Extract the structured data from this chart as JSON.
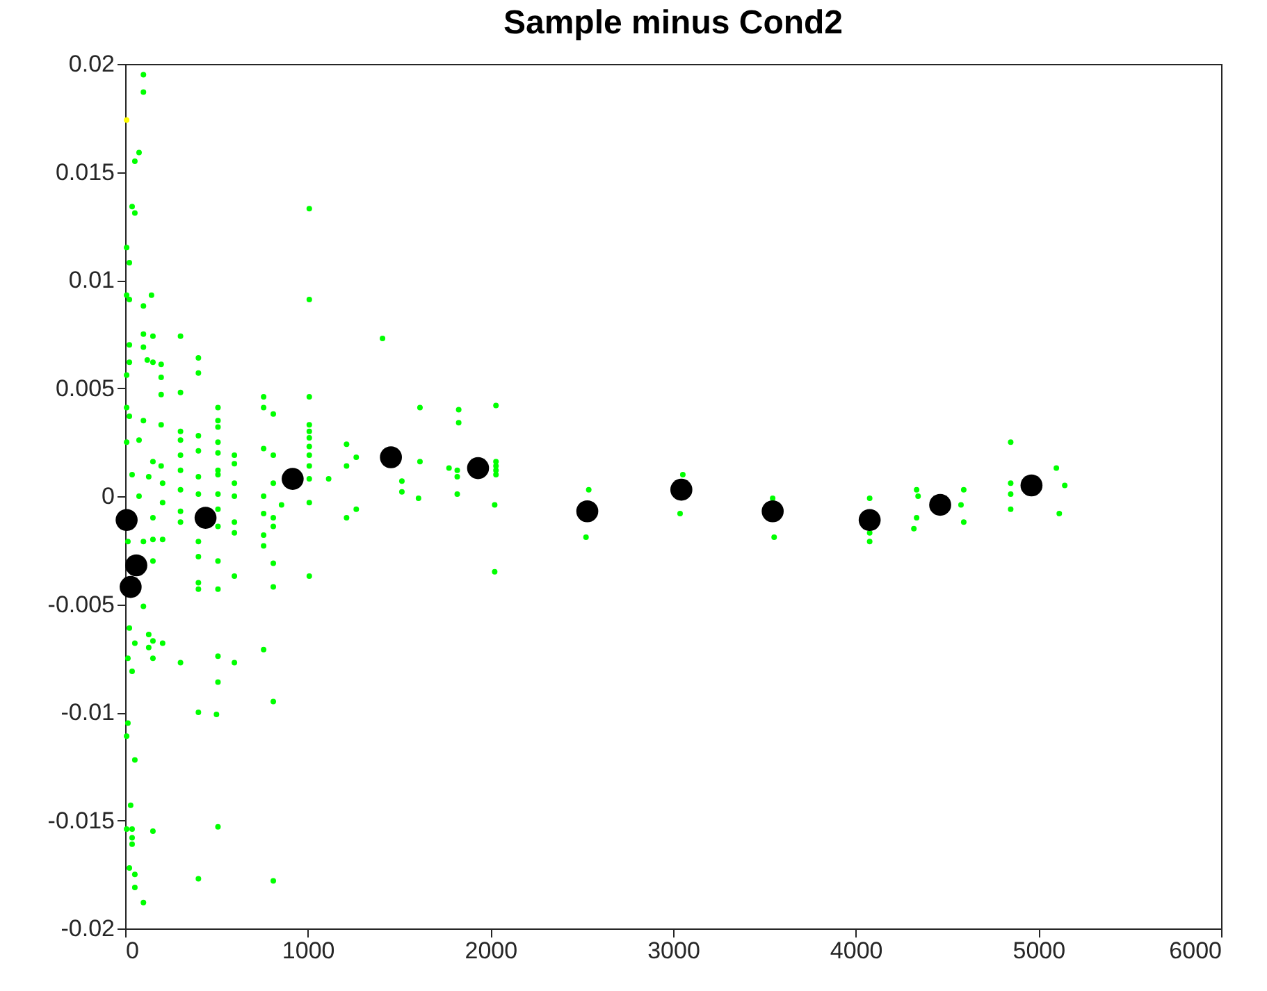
{
  "chart_data": {
    "type": "scatter",
    "title": "Sample minus Cond2",
    "xlim": [
      0,
      6000
    ],
    "xticks": [
      0,
      1000,
      2000,
      3000,
      4000,
      5000,
      6000
    ],
    "ylim": [
      -0.02,
      0.02
    ],
    "yticks": [
      -0.02,
      -0.015,
      -0.01,
      -0.005,
      0,
      0.005,
      0.01,
      0.015,
      0.02
    ],
    "grid": false,
    "marker": "circle",
    "series": [
      {
        "color": "#00ff00",
        "x": [
          100,
          100,
          76,
          53,
          38,
          53,
          1008,
          8,
          23,
          8,
          23,
          144,
          100,
          1008,
          100,
          152,
          303,
          1409,
          23,
          100,
          121,
          152,
          197,
          401,
          23,
          197,
          401,
          8,
          197,
          303,
          758,
          1008,
          758,
          811,
          508,
          8,
          23,
          100,
          508,
          197,
          508,
          303,
          303,
          401,
          1008,
          1008,
          1008,
          508,
          758,
          1212,
          1265,
          76,
          8,
          303,
          401,
          598,
          811,
          598,
          1008,
          1008,
          1008,
          152,
          197,
          303,
          508,
          508,
          1212,
          38,
          129,
          205,
          401,
          401,
          508,
          508,
          598,
          598,
          811,
          758,
          1008,
          1114,
          1008,
          856,
          303,
          303,
          303,
          205,
          152,
          76,
          508,
          508,
          598,
          598,
          758,
          811,
          811,
          758,
          758,
          1212,
          1265,
          401,
          401,
          508,
          811,
          598,
          1008,
          401,
          401,
          508,
          811,
          205,
          152,
          100,
          15,
          152,
          100,
          23,
          129,
          53,
          129,
          152,
          205,
          758,
          15,
          152,
          303,
          598,
          508,
          38,
          508,
          811,
          401,
          500,
          15,
          8,
          53,
          30,
          8,
          38,
          38,
          38,
          152,
          508,
          23,
          53,
          401,
          811,
          53,
          100,
          1614,
          1826,
          1826,
          2030,
          1614,
          1515,
          1515,
          1606,
          1773,
          1818,
          1818,
          1818,
          2030,
          2030,
          2030,
          2030,
          2023,
          2023,
          2538,
          2523,
          3053,
          3038,
          3545,
          3553,
          4076,
          4076,
          4076,
          4333,
          4341,
          4333,
          4318,
          4591,
          4576,
          4591,
          4848,
          4848,
          4848,
          4848,
          5098,
          5144,
          5114
        ],
        "values": [
          0.0195,
          0.0187,
          0.0159,
          0.0155,
          0.0134,
          0.0131,
          0.0133,
          0.0115,
          0.0108,
          0.0093,
          0.0091,
          0.0093,
          0.0088,
          0.0091,
          0.0075,
          0.0074,
          0.0074,
          0.0073,
          0.007,
          0.0069,
          0.0063,
          0.0062,
          0.0061,
          0.0064,
          0.0062,
          0.0055,
          0.0057,
          0.0056,
          0.0047,
          0.0048,
          0.0046,
          0.0046,
          0.0041,
          0.0038,
          0.0041,
          0.0041,
          0.0037,
          0.0035,
          0.0035,
          0.0033,
          0.0032,
          0.003,
          0.0026,
          0.0028,
          0.0033,
          0.003,
          0.0027,
          0.0025,
          0.0022,
          0.0024,
          0.0018,
          0.0026,
          0.0025,
          0.0019,
          0.0021,
          0.0019,
          0.0019,
          0.0015,
          0.0023,
          0.0019,
          0.0014,
          0.0016,
          0.0014,
          0.0012,
          0.002,
          0.0012,
          0.0014,
          0.001,
          0.0009,
          0.0006,
          0.0009,
          0.0001,
          0.001,
          0.0001,
          0.0006,
          0,
          0.0006,
          0,
          0.0008,
          0.0008,
          -0.0003,
          -0.0004,
          0.0003,
          -0.0007,
          -0.0012,
          -0.0003,
          -0.001,
          0,
          -0.0006,
          -0.0014,
          -0.0012,
          -0.0017,
          -0.0008,
          -0.001,
          -0.0014,
          -0.0018,
          -0.0023,
          -0.001,
          -0.0006,
          -0.0021,
          -0.0028,
          -0.003,
          -0.0031,
          -0.0037,
          -0.0037,
          -0.004,
          -0.0043,
          -0.0043,
          -0.0042,
          -0.002,
          -0.002,
          -0.0021,
          -0.0021,
          -0.003,
          -0.0051,
          -0.0061,
          -0.0064,
          -0.0068,
          -0.007,
          -0.0067,
          -0.0068,
          -0.0071,
          -0.0075,
          -0.0075,
          -0.0077,
          -0.0077,
          -0.0074,
          -0.0081,
          -0.0086,
          -0.0095,
          -0.01,
          -0.0101,
          -0.0105,
          -0.0111,
          -0.0122,
          -0.0143,
          -0.0154,
          -0.0154,
          -0.0158,
          -0.0161,
          -0.0155,
          -0.0153,
          -0.0172,
          -0.0175,
          -0.0177,
          -0.0178,
          -0.0181,
          -0.0188,
          0.0041,
          0.004,
          0.0034,
          0.0042,
          0.0016,
          0.0007,
          0.0002,
          -0.0001,
          0.0013,
          0.0012,
          0.0009,
          0.0001,
          0.0016,
          0.0014,
          0.0012,
          0.001,
          -0.0004,
          -0.0035,
          0.0003,
          -0.0019,
          0.001,
          -0.0008,
          -0.0001,
          -0.0019,
          -0.0001,
          -0.0017,
          -0.0021,
          0.0003,
          0,
          -0.001,
          -0.0015,
          0.0003,
          -0.0004,
          -0.0012,
          0.0025,
          0.0006,
          0.0001,
          -0.0006,
          0.0013,
          0.0005,
          -0.0008
        ]
      },
      {
        "color": "#ffff00",
        "x": [
          8
        ],
        "values": [
          0.0174
        ]
      },
      {
        "color": "#000000",
        "x": [
          8,
          61,
          30,
          440,
          917,
          1455,
          1932,
          2530,
          3045,
          3545,
          4076,
          4462,
          4962
        ],
        "values": [
          -0.0011,
          -0.0032,
          -0.0042,
          -0.001,
          0.0008,
          0.0018,
          0.0013,
          -0.0007,
          0.0003,
          -0.0007,
          -0.0011,
          -0.0004,
          0.0005
        ]
      }
    ]
  }
}
